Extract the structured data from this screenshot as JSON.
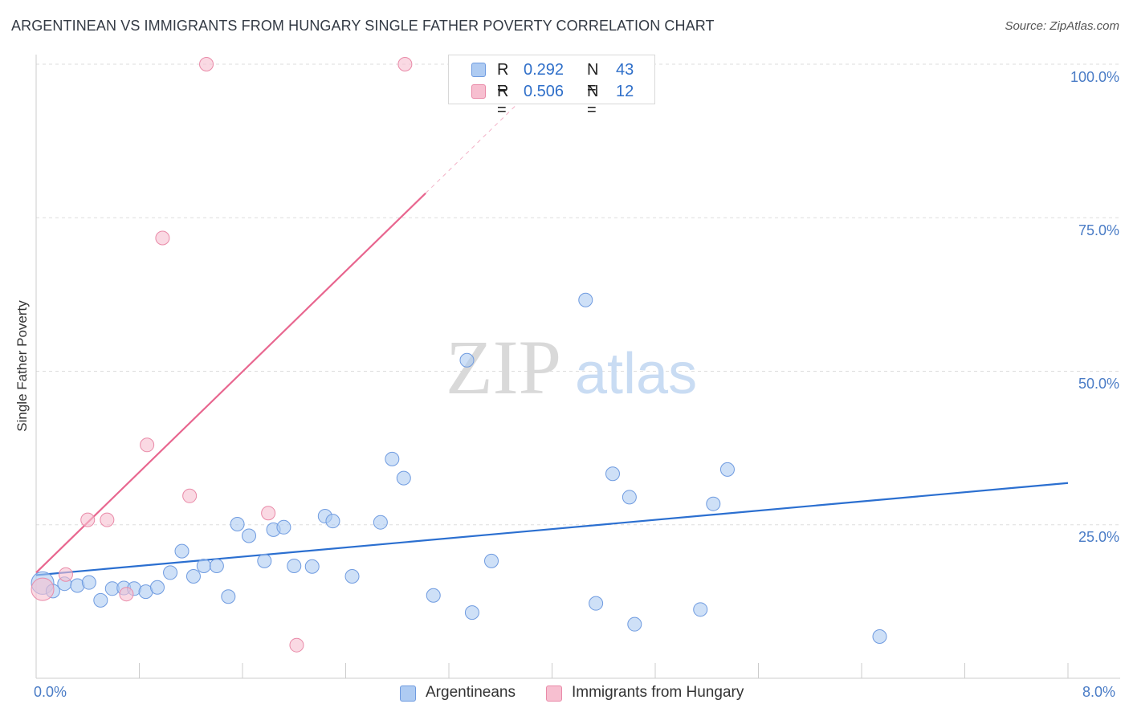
{
  "title": "ARGENTINEAN VS IMMIGRANTS FROM HUNGARY SINGLE FATHER POVERTY CORRELATION CHART",
  "source": "Source: ZipAtlas.com",
  "watermark": {
    "zip": "ZIP",
    "atlas": "atlas"
  },
  "colors": {
    "blue_fill": "#aecbf2",
    "blue_stroke": "#6f9be0",
    "blue_line": "#2b6fd0",
    "pink_fill": "#f7bfd0",
    "pink_stroke": "#e98aa8",
    "pink_line": "#e8668f",
    "grid": "#dddddd",
    "tick_text": "#4a7cc6"
  },
  "legend_top": {
    "rows": [
      {
        "r_label": "R =",
        "r_value": "0.292",
        "n_label": "N =",
        "n_value": "43",
        "series": "Argentineans"
      },
      {
        "r_label": "R =",
        "r_value": "0.506",
        "n_label": "N =",
        "n_value": "12",
        "series": "Immigrants from Hungary"
      }
    ]
  },
  "chart_data": {
    "type": "scatter",
    "title": "ARGENTINEAN VS IMMIGRANTS FROM HUNGARY SINGLE FATHER POVERTY CORRELATION CHART",
    "xlabel": "",
    "ylabel": "Single Father Poverty",
    "xlim": [
      0,
      8
    ],
    "ylim": [
      0,
      100
    ],
    "x_tick_labels": [
      "0.0%",
      "8.0%"
    ],
    "y_ticks": [
      25,
      50,
      75,
      100
    ],
    "y_tick_labels": [
      "25.0%",
      "50.0%",
      "75.0%",
      "100.0%"
    ],
    "grid": true,
    "legend_position": "bottom",
    "series": [
      {
        "name": "Argentineans",
        "color": "#6f9be0",
        "points": [
          [
            0.05,
            15.5
          ],
          [
            0.13,
            14.2
          ],
          [
            0.22,
            15.4
          ],
          [
            0.32,
            15.1
          ],
          [
            0.41,
            15.6
          ],
          [
            0.5,
            12.7
          ],
          [
            0.59,
            14.6
          ],
          [
            0.68,
            14.7
          ],
          [
            0.76,
            14.6
          ],
          [
            0.85,
            14.1
          ],
          [
            0.94,
            14.8
          ],
          [
            1.04,
            17.2
          ],
          [
            1.13,
            20.7
          ],
          [
            1.22,
            16.6
          ],
          [
            1.3,
            18.3
          ],
          [
            1.4,
            18.3
          ],
          [
            1.49,
            13.3
          ],
          [
            1.56,
            25.1
          ],
          [
            1.65,
            23.2
          ],
          [
            1.77,
            19.1
          ],
          [
            1.84,
            24.2
          ],
          [
            1.92,
            24.6
          ],
          [
            2.0,
            18.3
          ],
          [
            2.14,
            18.2
          ],
          [
            2.24,
            26.4
          ],
          [
            2.3,
            25.6
          ],
          [
            2.45,
            16.6
          ],
          [
            2.67,
            25.4
          ],
          [
            2.76,
            35.7
          ],
          [
            2.85,
            32.6
          ],
          [
            3.08,
            13.5
          ],
          [
            3.34,
            51.8
          ],
          [
            3.38,
            10.7
          ],
          [
            3.53,
            19.1
          ],
          [
            4.26,
            61.6
          ],
          [
            4.34,
            12.2
          ],
          [
            4.47,
            33.3
          ],
          [
            4.6,
            29.5
          ],
          [
            4.64,
            8.8
          ],
          [
            5.15,
            11.2
          ],
          [
            5.25,
            28.4
          ],
          [
            5.36,
            34.0
          ],
          [
            6.54,
            6.8
          ]
        ],
        "trend": {
          "x": [
            0,
            8
          ],
          "y": [
            16.8,
            31.8
          ]
        }
      },
      {
        "name": "Immigrants from Hungary",
        "color": "#e98aa8",
        "points": [
          [
            0.05,
            14.5
          ],
          [
            0.23,
            16.9
          ],
          [
            0.4,
            25.8
          ],
          [
            0.55,
            25.8
          ],
          [
            0.7,
            13.7
          ],
          [
            0.86,
            38.0
          ],
          [
            0.98,
            71.7
          ],
          [
            1.19,
            29.7
          ],
          [
            1.32,
            100
          ],
          [
            1.8,
            26.9
          ],
          [
            2.02,
            5.4
          ],
          [
            2.86,
            100
          ]
        ],
        "trend": {
          "x": [
            0,
            3.02
          ],
          "y": [
            17.2,
            79.0
          ],
          "dashed_to": {
            "x": 3.93,
            "y": 97.6
          }
        }
      }
    ]
  },
  "legend_bottom": [
    "Argentineans",
    "Immigrants from Hungary"
  ]
}
